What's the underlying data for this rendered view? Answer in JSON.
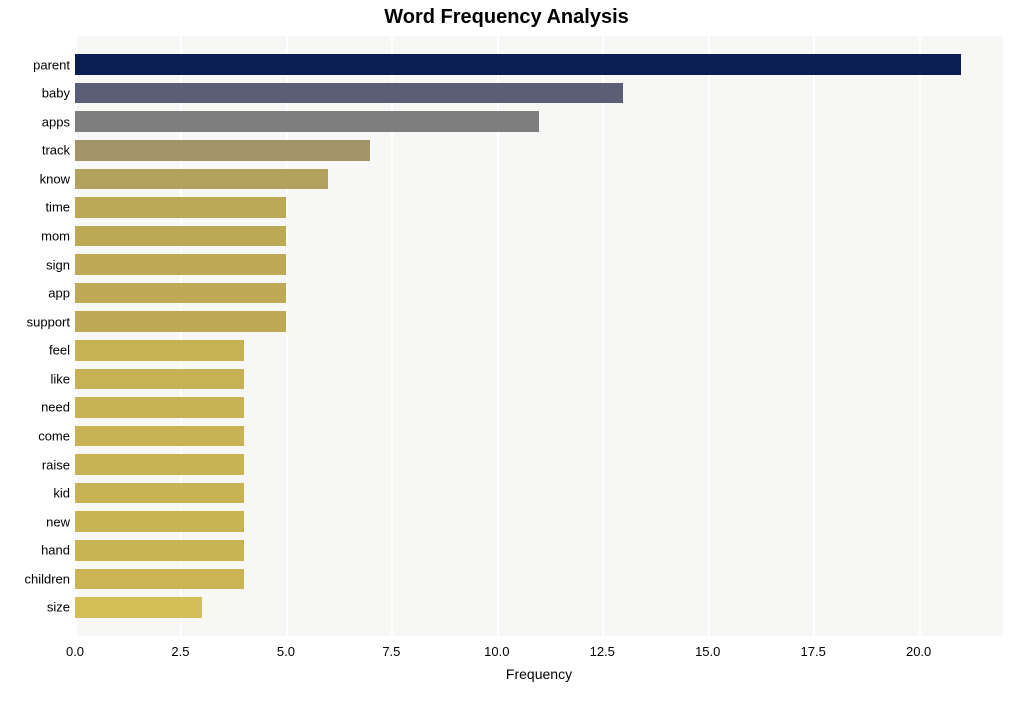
{
  "chart": {
    "type": "bar-horizontal",
    "title": "Word Frequency Analysis",
    "title_fontsize": 20,
    "title_fontweight": "bold",
    "title_color": "#000000",
    "background_color": "#ffffff",
    "plot_background_color": "#f7f7f5",
    "grid_color": "#ffffff",
    "axis_text_color": "#000000",
    "tick_fontsize": 13,
    "xlabel": "Frequency",
    "xlabel_fontsize": 14,
    "x": {
      "min": 0.0,
      "max": 22.0,
      "ticks": [
        0.0,
        2.5,
        5.0,
        7.5,
        10.0,
        12.5,
        15.0,
        17.5,
        20.0
      ],
      "tick_labels": [
        "0.0",
        "2.5",
        "5.0",
        "7.5",
        "10.0",
        "12.5",
        "15.0",
        "17.5",
        "20.0"
      ]
    },
    "bar_gap_ratio": 0.28,
    "categories": [
      {
        "label": "parent",
        "value": 21,
        "color": "#0a1e52"
      },
      {
        "label": "baby",
        "value": 13,
        "color": "#5a5f77"
      },
      {
        "label": "apps",
        "value": 11,
        "color": "#7e7e7e"
      },
      {
        "label": "track",
        "value": 7,
        "color": "#a19468"
      },
      {
        "label": "know",
        "value": 6,
        "color": "#b2a25d"
      },
      {
        "label": "time",
        "value": 5,
        "color": "#bba957"
      },
      {
        "label": "mom",
        "value": 5,
        "color": "#bca956"
      },
      {
        "label": "sign",
        "value": 5,
        "color": "#bda956"
      },
      {
        "label": "app",
        "value": 5,
        "color": "#bda956"
      },
      {
        "label": "support",
        "value": 5,
        "color": "#bda956"
      },
      {
        "label": "feel",
        "value": 4,
        "color": "#c6b155"
      },
      {
        "label": "like",
        "value": 4,
        "color": "#c6b255"
      },
      {
        "label": "need",
        "value": 4,
        "color": "#c7b255"
      },
      {
        "label": "come",
        "value": 4,
        "color": "#c7b355"
      },
      {
        "label": "raise",
        "value": 4,
        "color": "#c8b354"
      },
      {
        "label": "kid",
        "value": 4,
        "color": "#c8b354"
      },
      {
        "label": "new",
        "value": 4,
        "color": "#c9b454"
      },
      {
        "label": "hand",
        "value": 4,
        "color": "#c9b454"
      },
      {
        "label": "children",
        "value": 4,
        "color": "#cab454"
      },
      {
        "label": "size",
        "value": 3,
        "color": "#d4be56"
      }
    ]
  }
}
